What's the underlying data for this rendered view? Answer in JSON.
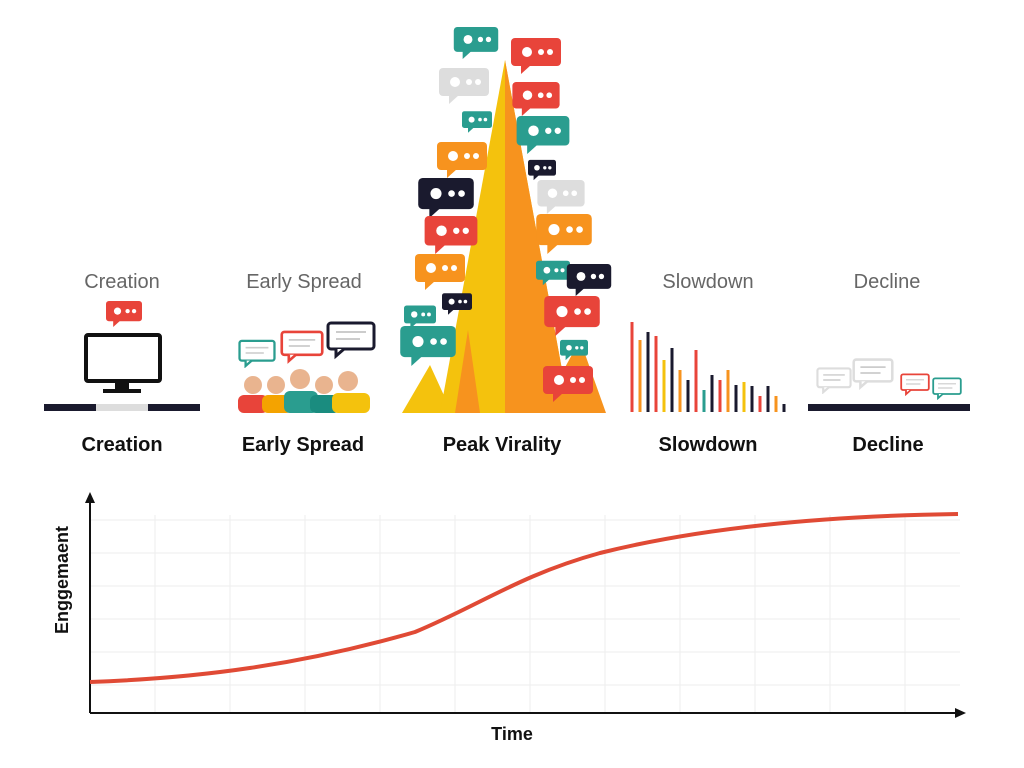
{
  "stages_top": [
    "Creation",
    "Early Spread",
    "Slowdown",
    "Decline"
  ],
  "stages_bottom": [
    "Creation",
    "Early Spread",
    "Peak Virality",
    "Slowdown",
    "Decline"
  ],
  "chart": {
    "y_label": "Enggemaent",
    "x_label": "Time"
  }
}
